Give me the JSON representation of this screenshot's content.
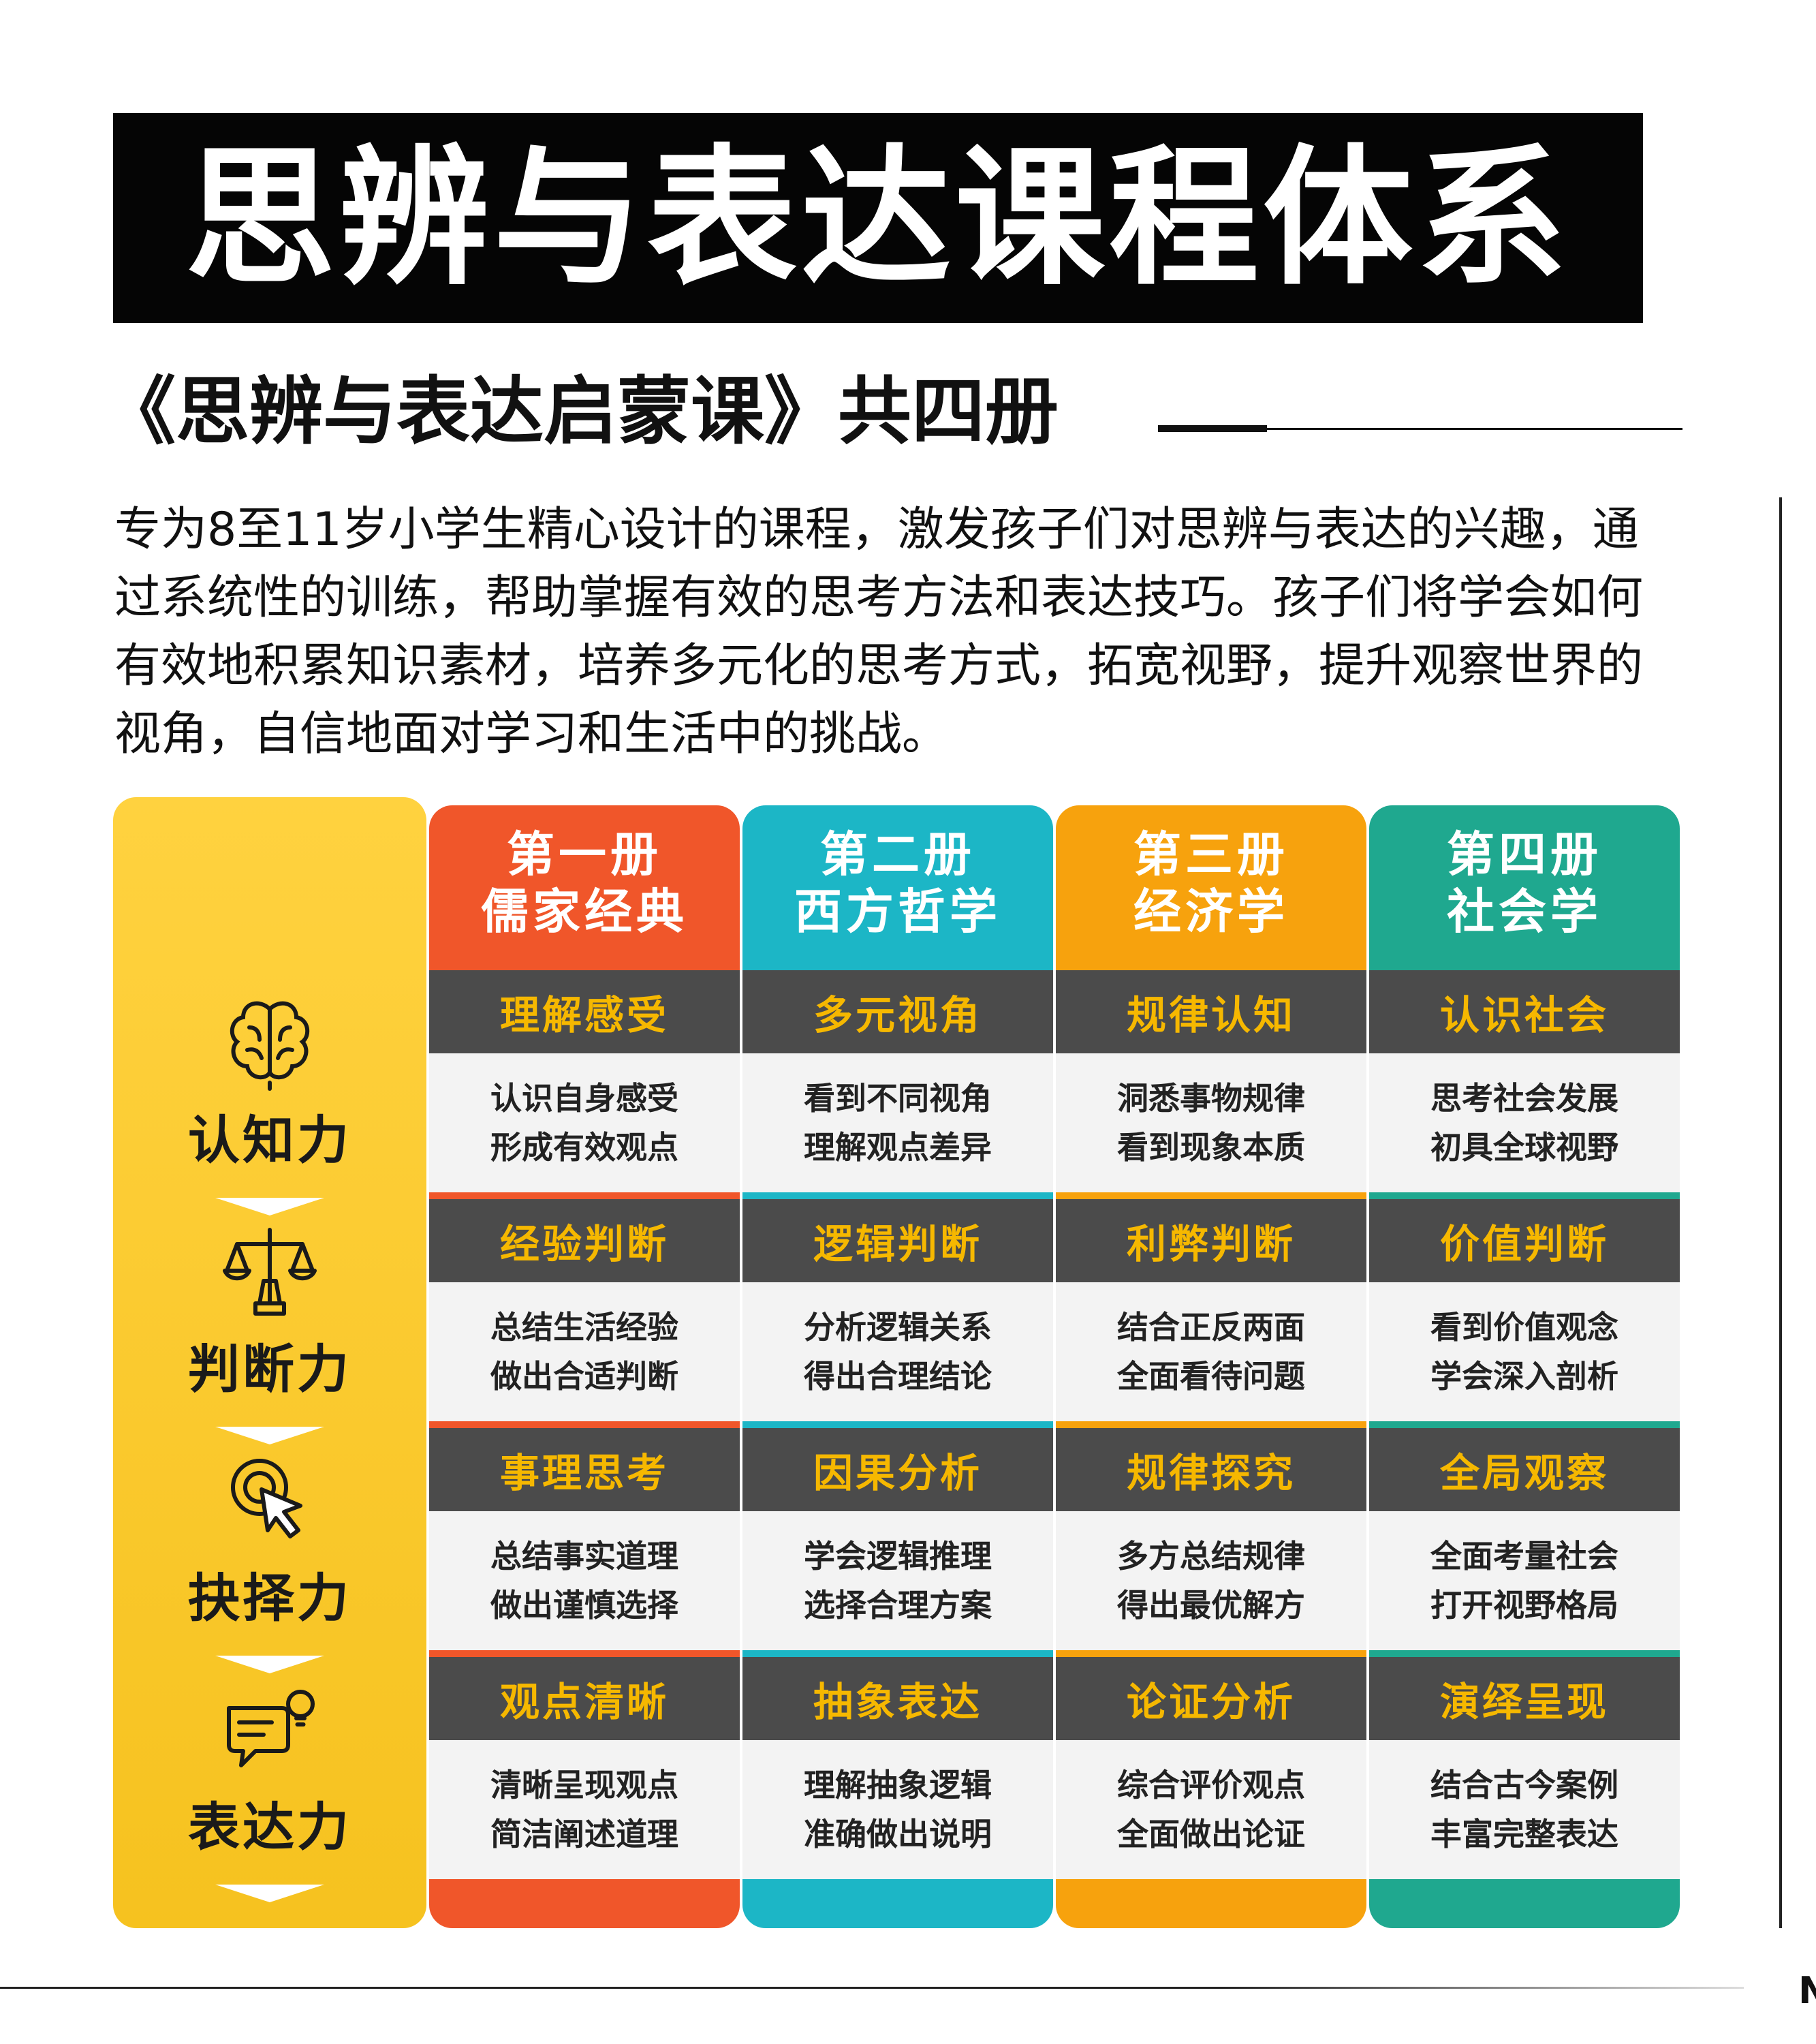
{
  "header": {
    "title": "思辨与表达课程体系",
    "subtitle": "《思辨与表达启蒙课》共四册",
    "intro": "专为8至11岁小学生精心设计的课程，激发孩子们对思辨与表达的兴趣，通过系统性的训练，帮助掌握有效的思考方法和表达技巧。孩子们将学会如何有效地积累知识素材，培养多元化的思考方式，拓宽视野，提升观察世界的视角，自信地面对学习和生活中的挑战。"
  },
  "corner_letter": "N",
  "books": [
    {
      "line1": "第一册",
      "line2": "儒家经典",
      "color": "#f0562a"
    },
    {
      "line1": "第二册",
      "line2": "西方哲学",
      "color": "#1cb6c6"
    },
    {
      "line1": "第三册",
      "line2": "经济学",
      "color": "#f7a20d"
    },
    {
      "line1": "第四册",
      "line2": "社会学",
      "color": "#1fa88f"
    }
  ],
  "abilities": [
    {
      "label": "认知力",
      "icon": "brain-icon"
    },
    {
      "label": "判断力",
      "icon": "scales-icon"
    },
    {
      "label": "抉择力",
      "icon": "cursor-click-icon"
    },
    {
      "label": "表达力",
      "icon": "speech-bubble-bulb-icon"
    }
  ],
  "grid": [
    [
      {
        "head": "理解感受",
        "l1": "认识自身感受",
        "l2": "形成有效观点"
      },
      {
        "head": "多元视角",
        "l1": "看到不同视角",
        "l2": "理解观点差异"
      },
      {
        "head": "规律认知",
        "l1": "洞悉事物规律",
        "l2": "看到现象本质"
      },
      {
        "head": "认识社会",
        "l1": "思考社会发展",
        "l2": "初具全球视野"
      }
    ],
    [
      {
        "head": "经验判断",
        "l1": "总结生活经验",
        "l2": "做出合适判断"
      },
      {
        "head": "逻辑判断",
        "l1": "分析逻辑关系",
        "l2": "得出合理结论"
      },
      {
        "head": "利弊判断",
        "l1": "结合正反两面",
        "l2": "全面看待问题"
      },
      {
        "head": "价值判断",
        "l1": "看到价值观念",
        "l2": "学会深入剖析"
      }
    ],
    [
      {
        "head": "事理思考",
        "l1": "总结事实道理",
        "l2": "做出谨慎选择"
      },
      {
        "head": "因果分析",
        "l1": "学会逻辑推理",
        "l2": "选择合理方案"
      },
      {
        "head": "规律探究",
        "l1": "多方总结规律",
        "l2": "得出最优解方"
      },
      {
        "head": "全局观察",
        "l1": "全面考量社会",
        "l2": "打开视野格局"
      }
    ],
    [
      {
        "head": "观点清晰",
        "l1": "清晰呈现观点",
        "l2": "简洁阐述道理"
      },
      {
        "head": "抽象表达",
        "l1": "理解抽象逻辑",
        "l2": "准确做出说明"
      },
      {
        "head": "论证分析",
        "l1": "综合评价观点",
        "l2": "全面做出论证"
      },
      {
        "head": "演绎呈现",
        "l1": "结合古今案例",
        "l2": "丰富完整表达"
      }
    ]
  ]
}
